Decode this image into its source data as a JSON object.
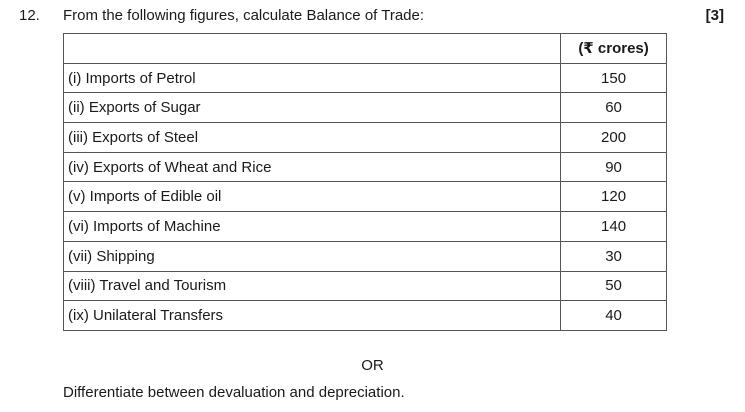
{
  "question": {
    "number": "12.",
    "text": "From the following figures, calculate Balance of Trade:",
    "marks": "[3]"
  },
  "table": {
    "header_item": "",
    "header_value": "(₹ crores)",
    "rows": [
      {
        "item": "(i) Imports of Petrol",
        "value": "150"
      },
      {
        "item": "(ii) Exports of Sugar",
        "value": "60"
      },
      {
        "item": "(iii) Exports of Steel",
        "value": "200"
      },
      {
        "item": "(iv) Exports of Wheat and Rice",
        "value": "90"
      },
      {
        "item": "(v) Imports of Edible oil",
        "value": "120"
      },
      {
        "item": "(vi) Imports of Machine",
        "value": "140"
      },
      {
        "item": "(vii) Shipping",
        "value": "30"
      },
      {
        "item": "(viii) Travel and Tourism",
        "value": "50"
      },
      {
        "item": "(ix) Unilateral Transfers",
        "value": "40"
      }
    ]
  },
  "or_text": "OR",
  "alternate_question": "Differentiate between devaluation and depreciation."
}
